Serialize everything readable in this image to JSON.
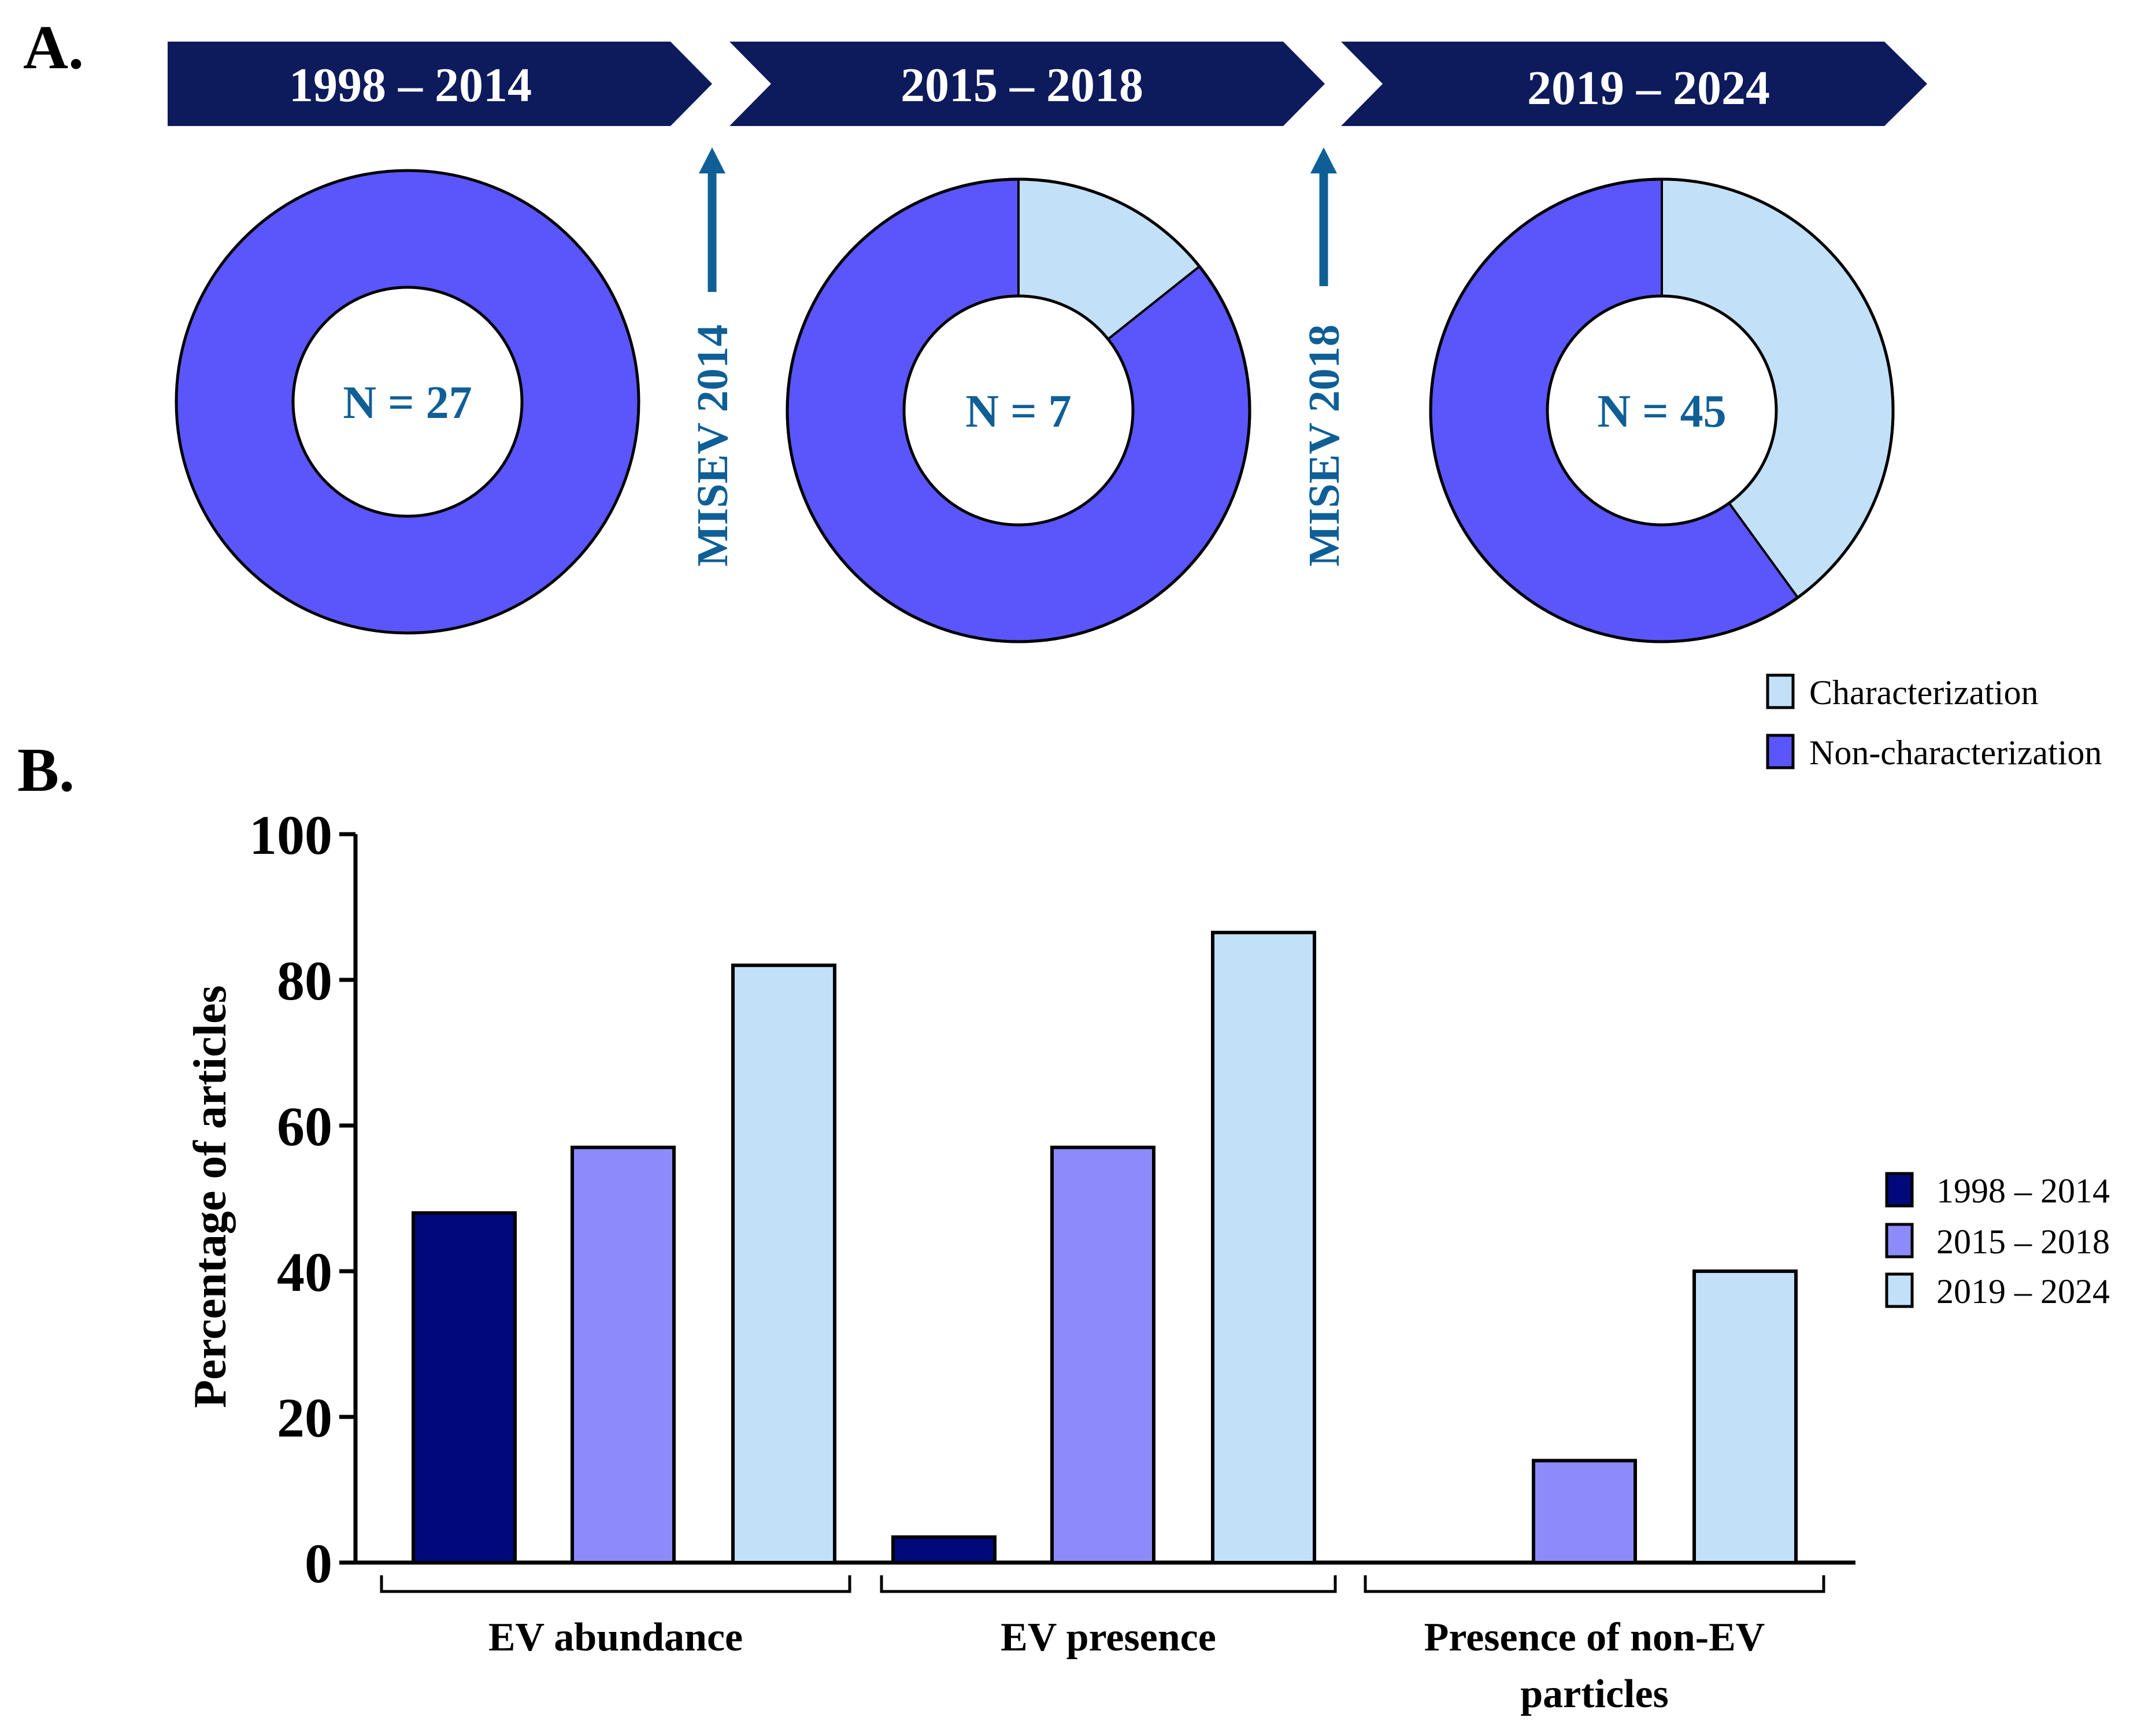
{
  "panel_a": {
    "label": "A.",
    "periods": [
      {
        "label": "1998 – 2014",
        "n_label": "N = 27",
        "characterization_pct": 0
      },
      {
        "label": "2015 – 2018",
        "n_label": "N = 7",
        "characterization_pct": 14.3
      },
      {
        "label": "2019 – 2024",
        "n_label": "N = 45",
        "characterization_pct": 40
      }
    ],
    "milestones": [
      "MISEV 2014",
      "MISEV 2018"
    ],
    "legend": [
      "Characterization",
      "Non-characterization"
    ]
  },
  "chart_data": [
    {
      "type": "pie",
      "title": "1998 – 2014",
      "center_label": "N = 27",
      "categories": [
        "Characterization",
        "Non-characterization"
      ],
      "values": [
        0,
        100
      ]
    },
    {
      "type": "pie",
      "title": "2015 – 2018",
      "center_label": "N = 7",
      "categories": [
        "Characterization",
        "Non-characterization"
      ],
      "values": [
        14.3,
        85.7
      ]
    },
    {
      "type": "pie",
      "title": "2019 – 2024",
      "center_label": "N = 45",
      "categories": [
        "Characterization",
        "Non-characterization"
      ],
      "values": [
        40,
        60
      ]
    },
    {
      "type": "bar",
      "panel_label": "B.",
      "categories": [
        "EV abundance",
        "EV presence",
        "Presence of non-EV particles"
      ],
      "category_lines": [
        [
          "EV abundance"
        ],
        [
          "EV presence"
        ],
        [
          "Presence of non-EV",
          "particles"
        ]
      ],
      "series": [
        {
          "name": "1998 – 2014",
          "values": [
            48,
            3.5,
            0
          ]
        },
        {
          "name": "2015 – 2018",
          "values": [
            57,
            57,
            14
          ]
        },
        {
          "name": "2019 – 2024",
          "values": [
            82,
            86.5,
            40
          ]
        }
      ],
      "ylabel": "Percentage of articles",
      "xlabel": "",
      "ylim": [
        0,
        100
      ],
      "yticks": [
        "0",
        "20",
        "40",
        "60",
        "80",
        "100"
      ],
      "legend_position": "right"
    }
  ],
  "colors": {
    "navy": "#0d1a5c",
    "text_blue": "#0f5f96",
    "donut_dark": "#5a56fb",
    "donut_light": "#c2e0f8",
    "bar_series": [
      "#00087a",
      "#8d8afb",
      "#c2e0f8"
    ],
    "outline": "#000000"
  }
}
